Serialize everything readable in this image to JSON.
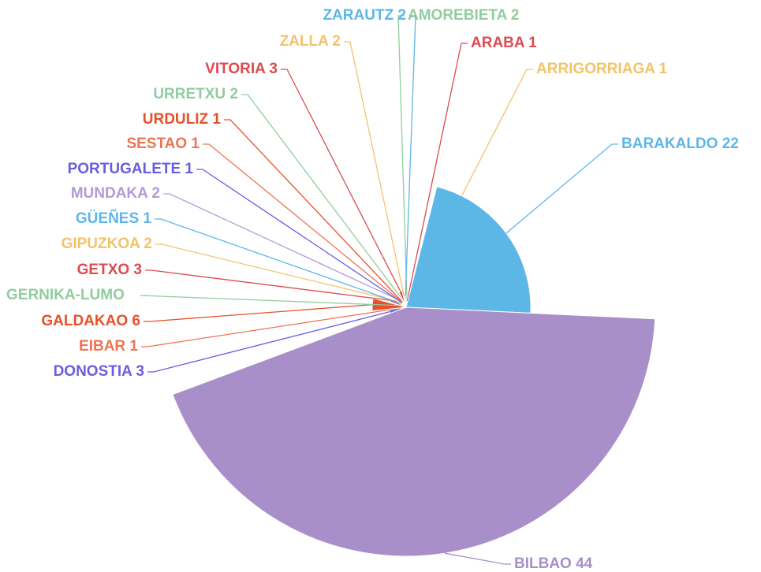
{
  "chart_data": {
    "type": "pie",
    "rose": "radius",
    "categories": [
      "AMOREBIETA 2",
      "ARABA 1",
      "ARRIGORRIAGA 1",
      "BARAKALDO 22",
      "BILBAO 44",
      "DONOSTIA 3",
      "EIBAR 1",
      "GALDAKAO 6",
      "GERNIKA-LUMO",
      "GETXO 3",
      "GIPUZKOA 2",
      "GÜEÑES 1",
      "MUNDAKA 2",
      "PORTUGALETE 1",
      "SESTAO 1",
      "URDULIZ 1",
      "URRETXU 2",
      "VITORIA 3",
      "ZALLA 2",
      "ZARAUTZ 2"
    ],
    "values": [
      2,
      1,
      1,
      22,
      44,
      3,
      1,
      6,
      1,
      3,
      2,
      1,
      2,
      1,
      1,
      1,
      2,
      3,
      2,
      2
    ],
    "colors": [
      "#91cc9f",
      "#dd4b50",
      "#f2c36b",
      "#5db7e6",
      "#a98fc9",
      "#6b5de0",
      "#f07252",
      "#e8502a",
      "#91cc9f",
      "#dd4b50",
      "#f2c36b",
      "#5db7e6",
      "#b39ad4",
      "#6b5de0",
      "#f07252",
      "#e8502a",
      "#91cc9f",
      "#dd4b50",
      "#f2c36b",
      "#5db7e6"
    ]
  }
}
